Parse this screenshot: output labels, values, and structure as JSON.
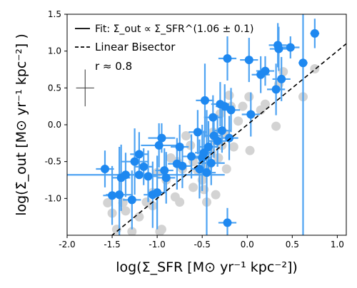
{
  "chart_data": {
    "type": "scatter",
    "xlabel": "log(Σ_SFR [M⊙ yr⁻¹ kpc⁻²])",
    "ylabel": "log(Σ̇_out [M⊙ yr⁻¹ kpc⁻²] )",
    "xlim": [
      -2.0,
      1.1
    ],
    "ylim": [
      -1.5,
      1.5
    ],
    "x_ticks": [
      "-2.0",
      "-1.5",
      "-1.0",
      "-0.5",
      "0.0",
      "0.5",
      "1.0"
    ],
    "y_ticks": [
      "-1.0",
      "-0.5",
      "0.0",
      "0.5",
      "1.0",
      "1.5"
    ],
    "x_tick_values": [
      -2.0,
      -1.5,
      -1.0,
      -0.5,
      0.0,
      0.5,
      1.0
    ],
    "y_tick_values": [
      -1.0,
      -0.5,
      0.0,
      0.5,
      1.0,
      1.5
    ],
    "grid": false,
    "legend_position": "top-left",
    "legend": {
      "fit": "Fit: Σ̇_out ∝ Σ_SFR^(1.06 ± 0.1)",
      "bisector": "Linear Bisector",
      "correlation": "r ≈ 0.8"
    },
    "colors": {
      "points": "#1e88f0",
      "errorbars": "#4ea3f2",
      "gray_points": "#d3d3d3",
      "lines": "#000000"
    },
    "fit_line": {
      "slope": 1.06,
      "intercept": 0.0
    },
    "bisector_line": {
      "slope": 1.0,
      "intercept": 0.0
    },
    "representative_error": {
      "x": -1.8,
      "y": 0.5,
      "xerr": 0.1,
      "yerr": 0.25
    },
    "gray_series": {
      "points": [
        [
          -1.55,
          -1.06
        ],
        [
          -1.38,
          -1.06
        ],
        [
          -1.35,
          -1.17
        ],
        [
          -1.28,
          -1.45
        ],
        [
          -1.45,
          -1.42
        ],
        [
          -1.2,
          -1.25
        ],
        [
          -1.12,
          -1.05
        ],
        [
          -1.05,
          -1.1
        ],
        [
          -0.95,
          -1.42
        ],
        [
          -0.97,
          -1.45
        ],
        [
          -0.9,
          -0.75
        ],
        [
          -0.85,
          -0.45
        ],
        [
          -0.8,
          -0.98
        ],
        [
          -0.75,
          -1.05
        ],
        [
          -0.72,
          -0.6
        ],
        [
          -0.68,
          -0.15
        ],
        [
          -0.63,
          -0.28
        ],
        [
          -0.6,
          -0.5
        ],
        [
          -0.55,
          -0.62
        ],
        [
          -0.5,
          -0.75
        ],
        [
          -0.48,
          -0.88
        ],
        [
          -0.45,
          -1.05
        ],
        [
          -0.43,
          -0.55
        ],
        [
          -0.4,
          -0.38
        ],
        [
          -0.38,
          -0.1
        ],
        [
          -0.35,
          -0.22
        ],
        [
          -0.32,
          -0.45
        ],
        [
          -0.3,
          0.15
        ],
        [
          -0.28,
          -0.28
        ],
        [
          -0.25,
          -0.12
        ],
        [
          -0.23,
          -0.6
        ],
        [
          -0.2,
          0.4
        ],
        [
          -0.18,
          0.25
        ],
        [
          -0.15,
          -0.3
        ],
        [
          -0.1,
          0.05
        ],
        [
          -0.05,
          0.25
        ],
        [
          0.02,
          0.38
        ],
        [
          0.03,
          -0.35
        ],
        [
          0.15,
          0.2
        ],
        [
          0.2,
          0.28
        ],
        [
          0.32,
          -0.02
        ],
        [
          0.35,
          0.55
        ],
        [
          0.4,
          0.72
        ],
        [
          0.62,
          0.38
        ],
        [
          0.75,
          0.76
        ],
        [
          -1.05,
          -0.92
        ],
        [
          -1.5,
          -1.2
        ],
        [
          -0.35,
          -0.95
        ],
        [
          -0.6,
          -0.85
        ],
        [
          -1.0,
          -0.65
        ],
        [
          -0.78,
          -0.5
        ]
      ]
    },
    "blue_series": {
      "points": [
        {
          "x": -1.58,
          "y": -0.6,
          "xerr": 0.1,
          "yerr": 0.25
        },
        {
          "x": -1.5,
          "y": -0.96,
          "xerr": 0.1,
          "yerr": 0.4
        },
        {
          "x": -1.42,
          "y": -0.95,
          "xerr": 0.15,
          "yerr": 0.65
        },
        {
          "x": -1.4,
          "y": -0.72,
          "xerr": 0.1,
          "yerr": 0.45
        },
        {
          "x": -1.35,
          "y": -0.68,
          "xerr": 0.1,
          "yerr": 0.3
        },
        {
          "x": -1.28,
          "y": -1.02,
          "xerr": 0.1,
          "yerr": 0.4
        },
        {
          "x": -1.25,
          "y": -0.5,
          "xerr": 0.15,
          "yerr": 0.45
        },
        {
          "x": -1.2,
          "y": -0.4,
          "xerr": 0.1,
          "yerr": 0.3
        },
        {
          "x": -1.15,
          "y": -0.57,
          "xerr": 0.1,
          "yerr": 0.25
        },
        {
          "x": -1.1,
          "y": -0.7,
          "xerr": 0.1,
          "yerr": 0.35
        },
        {
          "x": -1.05,
          "y": -0.95,
          "xerr": 0.1,
          "yerr": 0.45
        },
        {
          "x": -1.0,
          "y": -0.92,
          "xerr": 0.1,
          "yerr": 0.5
        },
        {
          "x": -0.98,
          "y": -0.28,
          "xerr": 0.2,
          "yerr": 0.3
        },
        {
          "x": -0.95,
          "y": -0.18,
          "xerr": 0.15,
          "yerr": 0.2
        },
        {
          "x": -0.92,
          "y": -0.62,
          "xerr": 0.1,
          "yerr": 0.3
        },
        {
          "x": -0.9,
          "y": -0.72,
          "xerr": 0.1,
          "yerr": 0.35
        },
        {
          "x": -0.78,
          "y": -0.53,
          "xerr": 0.1,
          "yerr": 0.35
        },
        {
          "x": -0.75,
          "y": -0.3,
          "xerr": 0.1,
          "yerr": 0.3
        },
        {
          "x": -0.72,
          "y": -0.56,
          "xerr": 0.1,
          "yerr": 0.3
        },
        {
          "x": -0.62,
          "y": -0.43,
          "xerr": 0.1,
          "yerr": 0.3
        },
        {
          "x": -0.55,
          "y": -0.1,
          "xerr": 0.1,
          "yerr": 0.3
        },
        {
          "x": -0.53,
          "y": -0.6,
          "xerr": 0.1,
          "yerr": 0.4
        },
        {
          "x": -0.5,
          "y": -0.45,
          "xerr": 0.1,
          "yerr": 0.45
        },
        {
          "x": -0.48,
          "y": -0.38,
          "xerr": 0.1,
          "yerr": 0.3
        },
        {
          "x": -0.47,
          "y": 0.33,
          "xerr": 0.1,
          "yerr": 0.5
        },
        {
          "x": -0.45,
          "y": -0.65,
          "xerr": 0.1,
          "yerr": 0.85
        },
        {
          "x": -0.43,
          "y": -0.3,
          "xerr": 0.1,
          "yerr": 0.35
        },
        {
          "x": -0.4,
          "y": -0.52,
          "xerr": 0.15,
          "yerr": 0.3
        },
        {
          "x": -0.38,
          "y": 0.1,
          "xerr": 0.1,
          "yerr": 0.3
        },
        {
          "x": -0.37,
          "y": -0.15,
          "xerr": 0.1,
          "yerr": 0.3
        },
        {
          "x": -0.33,
          "y": -0.22,
          "xerr": 0.1,
          "yerr": 0.35
        },
        {
          "x": -0.3,
          "y": 0.28,
          "xerr": 0.1,
          "yerr": 0.3
        },
        {
          "x": -0.28,
          "y": -0.08,
          "xerr": 0.1,
          "yerr": 0.3
        },
        {
          "x": -0.25,
          "y": 0.25,
          "xerr": 0.1,
          "yerr": 0.3
        },
        {
          "x": -0.22,
          "y": 0.9,
          "xerr": 0.1,
          "yerr": 0.3
        },
        {
          "x": -0.2,
          "y": -0.18,
          "xerr": 0.1,
          "yerr": 0.3
        },
        {
          "x": -0.18,
          "y": 0.2,
          "xerr": 0.1,
          "yerr": 0.3
        },
        {
          "x": -0.22,
          "y": -1.33,
          "xerr": 0.1,
          "yerr": 0.2
        },
        {
          "x": 0.02,
          "y": 0.88,
          "xerr": 0.1,
          "yerr": 0.3
        },
        {
          "x": 0.04,
          "y": 0.14,
          "xerr": 0.1,
          "yerr": 0.3
        },
        {
          "x": 0.15,
          "y": 0.68,
          "xerr": 0.1,
          "yerr": 0.25
        },
        {
          "x": 0.2,
          "y": 0.73,
          "xerr": 0.1,
          "yerr": 0.2
        },
        {
          "x": 0.32,
          "y": 0.48,
          "xerr": 0.1,
          "yerr": 0.35
        },
        {
          "x": 0.34,
          "y": 1.08,
          "xerr": 0.1,
          "yerr": 0.3
        },
        {
          "x": 0.35,
          "y": 1.03,
          "xerr": 0.1,
          "yerr": 0.3
        },
        {
          "x": 0.38,
          "y": 0.62,
          "xerr": 0.1,
          "yerr": 0.3
        },
        {
          "x": 0.48,
          "y": 1.05,
          "xerr": 0.1,
          "yerr": 0.15
        },
        {
          "x": 0.62,
          "y": 0.84,
          "xerr": 0.05,
          "yerr": 2.5
        },
        {
          "x": 0.75,
          "y": 1.24,
          "xerr": 0.05,
          "yerr": 0.2
        },
        {
          "x": -1.2,
          "y": -0.68,
          "xerr": 0.95,
          "yerr": 0.05
        }
      ]
    }
  }
}
